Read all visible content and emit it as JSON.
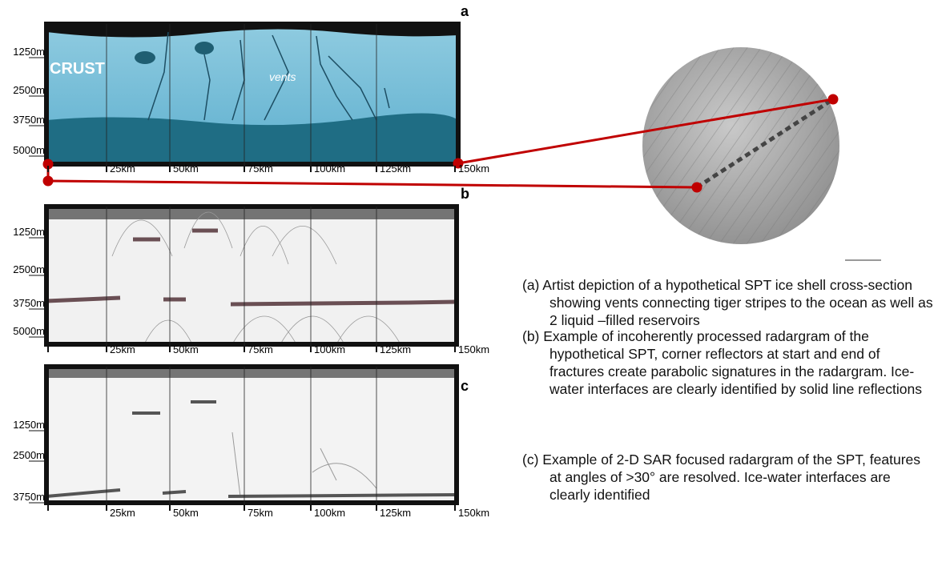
{
  "panels": [
    {
      "label": "a",
      "depth_labels": [
        "1250m",
        "2500m",
        "3750m",
        "5000m"
      ],
      "distance_labels": [
        "25km",
        "50km",
        "75km",
        "100km",
        "125km",
        "150km"
      ],
      "texts": [
        "CRUST",
        "vents"
      ]
    },
    {
      "label": "b",
      "depth_labels": [
        "1250m",
        "2500m",
        "3750m",
        "5000m"
      ],
      "distance_labels": [
        "25km",
        "50km",
        "75km",
        "100km",
        "125km",
        "150km"
      ]
    },
    {
      "label": "c",
      "depth_labels": [
        "1250m",
        "2500m",
        "3750m"
      ],
      "distance_labels": [
        "25km",
        "50km",
        "75km",
        "100km",
        "125km",
        "150km"
      ]
    }
  ],
  "captions": [
    "(a) Artist depiction of a hypothetical SPT ice shell cross-section showing vents connecting tiger stripes to the ocean as well as 2 liquid –filled reservoirs",
    "(b) Example of incoherently processed radargram of the hypothetical SPT, corner reflectors at start and end of fractures create parabolic signatures in the radargram. Ice-water interfaces are clearly identified by solid line reflections",
    "(c) Example of 2-D SAR focused radargram of the SPT, features at angles of >30° are resolved. Ice-water interfaces are clearly identified"
  ]
}
